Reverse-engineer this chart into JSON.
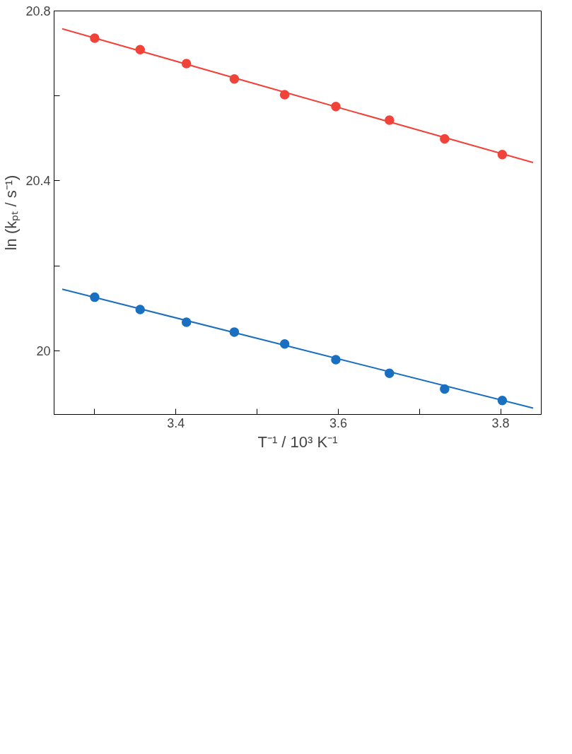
{
  "chart_data": {
    "type": "scatter",
    "xlabel": "T⁻¹ / 10³ K⁻¹",
    "ylabel": "ln (kₚₜ / s⁻¹)",
    "x": [
      3.3,
      3.356,
      3.413,
      3.472,
      3.534,
      3.597,
      3.663,
      3.731,
      3.802
    ],
    "xlim": [
      3.25,
      3.85
    ],
    "xticks": [
      {
        "value": 3.3,
        "label": null
      },
      3.4,
      {
        "value": 3.5,
        "label": null
      },
      3.6,
      {
        "value": 3.7,
        "label": null
      },
      3.8
    ],
    "ylim": [
      19.85,
      20.8
    ],
    "yticks": [
      20.0,
      {
        "value": 20.2,
        "label": null
      },
      20.4,
      {
        "value": 20.6,
        "label": null
      },
      20.8
    ],
    "grid": false,
    "marker": "circle",
    "series": [
      {
        "color": "#f0433a",
        "values": [
          20.736,
          20.709,
          20.676,
          20.64,
          20.603,
          20.575,
          20.543,
          20.499,
          20.462
        ]
      },
      {
        "color": "#1a6fc0",
        "values": [
          20.126,
          20.097,
          20.067,
          20.044,
          20.016,
          19.979,
          19.947,
          19.91,
          19.883
        ]
      },
      {
        "type": "line",
        "marker": "none",
        "color": "#f0433a",
        "x": [
          3.26,
          3.55,
          3.84
        ],
        "values": [
          20.758,
          20.6,
          20.443
        ]
      },
      {
        "type": "line",
        "marker": "none",
        "color": "#1a6fc0",
        "x": [
          3.26,
          3.55,
          3.84
        ],
        "values": [
          20.145,
          20.005,
          19.865
        ]
      }
    ]
  }
}
